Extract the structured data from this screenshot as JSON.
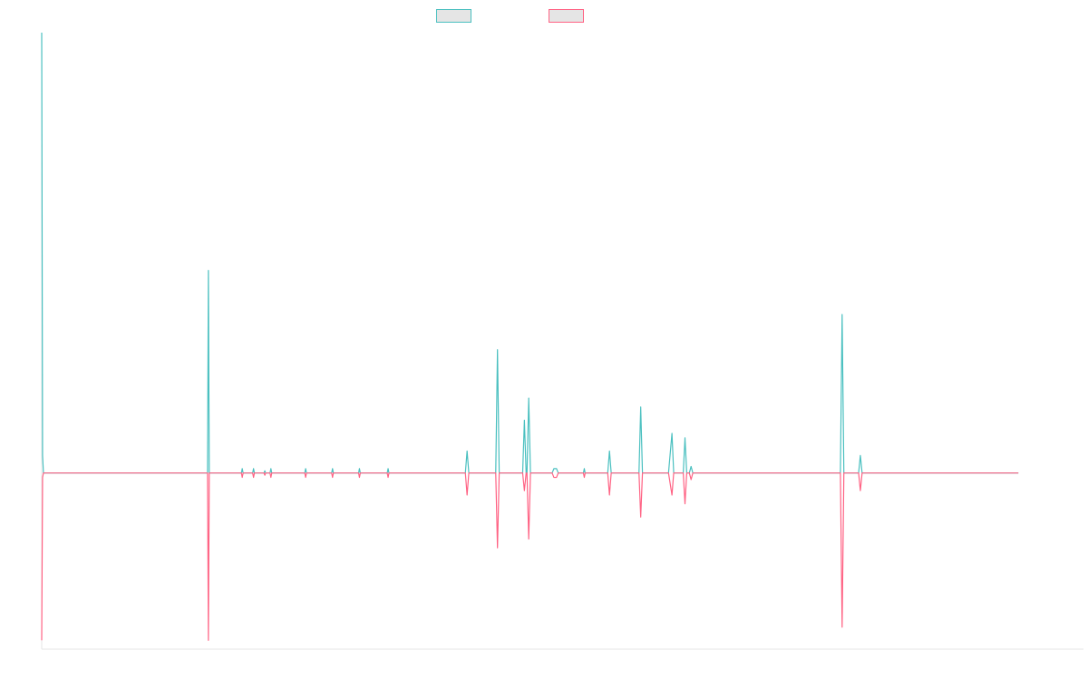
{
  "chart_data": {
    "type": "line",
    "title": "",
    "xlabel": "",
    "ylabel": "",
    "legend": {
      "placement": "top-center",
      "show": true
    },
    "grid": false,
    "xlim": [
      0,
      1200
    ],
    "ylim": [
      -0.4,
      1.0
    ],
    "series": [
      {
        "color": "#4bc0c0",
        "fill": "#e5e5e5",
        "points": [
          [
            0,
            1.0
          ],
          [
            1,
            0.04
          ],
          [
            2,
            0.0
          ],
          [
            190,
            0.0
          ],
          [
            191,
            0.0
          ],
          [
            192,
            0.46
          ],
          [
            193,
            0.0
          ],
          [
            194,
            0.0
          ],
          [
            230,
            0.0
          ],
          [
            231,
            0.01
          ],
          [
            232,
            0.0
          ],
          [
            243,
            0.0
          ],
          [
            244,
            0.01
          ],
          [
            245,
            0.0
          ],
          [
            256,
            0.0
          ],
          [
            257,
            0.005
          ],
          [
            258,
            0.0
          ],
          [
            263,
            0.0
          ],
          [
            264,
            0.01
          ],
          [
            265,
            0.0
          ],
          [
            303,
            0.0
          ],
          [
            304,
            0.01
          ],
          [
            305,
            0.0
          ],
          [
            334,
            0.0
          ],
          [
            335,
            0.01
          ],
          [
            336,
            0.0
          ],
          [
            365,
            0.0
          ],
          [
            366,
            0.01
          ],
          [
            367,
            0.0
          ],
          [
            398,
            0.0
          ],
          [
            399,
            0.01
          ],
          [
            400,
            0.0
          ],
          [
            488,
            0.0
          ],
          [
            490,
            0.05
          ],
          [
            492,
            0.0
          ],
          [
            523,
            0.0
          ],
          [
            525,
            0.28
          ],
          [
            527,
            0.0
          ],
          [
            554,
            0.0
          ],
          [
            556,
            0.12
          ],
          [
            558,
            0.0
          ],
          [
            559,
            0.0
          ],
          [
            561,
            0.17
          ],
          [
            563,
            0.0
          ],
          [
            588,
            0.0
          ],
          [
            590,
            0.01
          ],
          [
            593,
            0.01
          ],
          [
            595,
            0.0
          ],
          [
            624,
            0.0
          ],
          [
            625,
            0.01
          ],
          [
            626,
            0.0
          ],
          [
            652,
            0.0
          ],
          [
            654,
            0.05
          ],
          [
            656,
            0.0
          ],
          [
            688,
            0.0
          ],
          [
            690,
            0.15
          ],
          [
            692,
            0.0
          ],
          [
            722,
            0.0
          ],
          [
            726,
            0.09
          ],
          [
            728,
            0.0
          ],
          [
            739,
            0.0
          ],
          [
            741,
            0.08
          ],
          [
            743,
            0.0
          ],
          [
            746,
            0.0
          ],
          [
            748,
            0.015
          ],
          [
            750,
            0.0
          ],
          [
            920,
            0.0
          ],
          [
            922,
            0.36
          ],
          [
            924,
            0.0
          ],
          [
            941,
            0.0
          ],
          [
            943,
            0.04
          ],
          [
            945,
            0.0
          ],
          [
            1125,
            0.0
          ]
        ]
      },
      {
        "color": "#ff6384",
        "fill": "#e5e5e5",
        "points": [
          [
            0,
            -0.38
          ],
          [
            1,
            -0.01
          ],
          [
            2,
            0.0
          ],
          [
            190,
            0.0
          ],
          [
            191,
            0.0
          ],
          [
            192,
            -0.38
          ],
          [
            193,
            0.0
          ],
          [
            194,
            0.0
          ],
          [
            230,
            0.0
          ],
          [
            231,
            -0.01
          ],
          [
            232,
            0.0
          ],
          [
            243,
            0.0
          ],
          [
            244,
            -0.01
          ],
          [
            245,
            0.0
          ],
          [
            256,
            0.0
          ],
          [
            257,
            -0.005
          ],
          [
            258,
            0.0
          ],
          [
            263,
            0.0
          ],
          [
            264,
            -0.01
          ],
          [
            265,
            0.0
          ],
          [
            303,
            0.0
          ],
          [
            304,
            -0.01
          ],
          [
            305,
            0.0
          ],
          [
            334,
            0.0
          ],
          [
            335,
            -0.01
          ],
          [
            336,
            0.0
          ],
          [
            365,
            0.0
          ],
          [
            366,
            -0.01
          ],
          [
            367,
            0.0
          ],
          [
            398,
            0.0
          ],
          [
            399,
            -0.01
          ],
          [
            400,
            0.0
          ],
          [
            488,
            0.0
          ],
          [
            490,
            -0.05
          ],
          [
            492,
            0.0
          ],
          [
            523,
            0.0
          ],
          [
            525,
            -0.17
          ],
          [
            527,
            0.0
          ],
          [
            554,
            0.0
          ],
          [
            556,
            -0.04
          ],
          [
            558,
            0.0
          ],
          [
            559,
            0.0
          ],
          [
            561,
            -0.15
          ],
          [
            563,
            0.0
          ],
          [
            588,
            0.0
          ],
          [
            590,
            -0.01
          ],
          [
            593,
            -0.01
          ],
          [
            595,
            0.0
          ],
          [
            624,
            0.0
          ],
          [
            625,
            -0.01
          ],
          [
            626,
            0.0
          ],
          [
            652,
            0.0
          ],
          [
            654,
            -0.05
          ],
          [
            656,
            0.0
          ],
          [
            688,
            0.0
          ],
          [
            690,
            -0.1
          ],
          [
            692,
            0.0
          ],
          [
            722,
            0.0
          ],
          [
            726,
            -0.05
          ],
          [
            728,
            0.0
          ],
          [
            739,
            0.0
          ],
          [
            741,
            -0.07
          ],
          [
            743,
            0.0
          ],
          [
            746,
            0.0
          ],
          [
            748,
            -0.015
          ],
          [
            750,
            0.0
          ],
          [
            920,
            0.0
          ],
          [
            922,
            -0.35
          ],
          [
            924,
            0.0
          ],
          [
            941,
            0.0
          ],
          [
            943,
            -0.04
          ],
          [
            945,
            0.0
          ],
          [
            1125,
            0.0
          ]
        ]
      }
    ]
  }
}
